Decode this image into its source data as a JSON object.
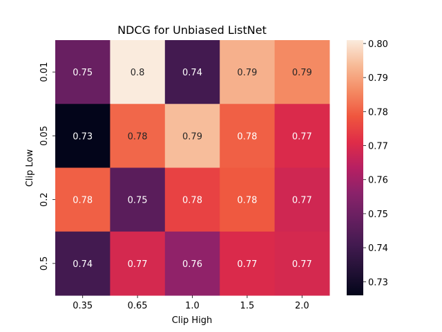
{
  "chart_data": {
    "type": "heatmap",
    "title": "NDCG for Unbiased ListNet",
    "xlabel": "Clip High",
    "ylabel": "Clip Low",
    "x_categories": [
      "0.35",
      "0.65",
      "1.0",
      "1.5",
      "2.0"
    ],
    "y_categories": [
      "0.01",
      "0.05",
      "0.2",
      "0.5"
    ],
    "values": [
      [
        0.749,
        0.801,
        0.741,
        0.792,
        0.786
      ],
      [
        0.726,
        0.781,
        0.794,
        0.78,
        0.77
      ],
      [
        0.78,
        0.746,
        0.775,
        0.779,
        0.768
      ],
      [
        0.741,
        0.769,
        0.757,
        0.77,
        0.769
      ]
    ],
    "annotations": [
      [
        "0.75",
        "0.8",
        "0.74",
        "0.79",
        "0.79"
      ],
      [
        "0.73",
        "0.78",
        "0.79",
        "0.78",
        "0.77"
      ],
      [
        "0.78",
        "0.75",
        "0.78",
        "0.78",
        "0.77"
      ],
      [
        "0.74",
        "0.77",
        "0.76",
        "0.77",
        "0.77"
      ]
    ],
    "colorbar": {
      "range": [
        0.726,
        0.801
      ],
      "ticks": [
        "0.73",
        "0.74",
        "0.75",
        "0.76",
        "0.77",
        "0.78",
        "0.79",
        "0.80"
      ]
    },
    "colormap": "rocket",
    "grid": false
  }
}
